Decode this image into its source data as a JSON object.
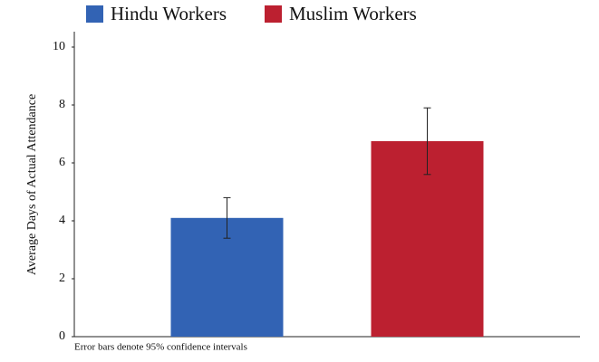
{
  "chart_data": {
    "type": "bar",
    "categories": [
      null
    ],
    "series": [
      {
        "name": "Hindu Workers",
        "color": "#3263b4",
        "values": [
          4.1
        ],
        "errors": [
          0.7
        ]
      },
      {
        "name": "Muslim Workers",
        "color": "#bc2030",
        "values": [
          6.75
        ],
        "errors": [
          1.15
        ]
      }
    ],
    "ylabel": "Average Days of Actual Attendance",
    "annotation": "Error bars denote 95% confidence intervals",
    "ylim": [
      0,
      10
    ],
    "yticks": [
      0,
      2,
      4,
      6,
      8,
      10
    ],
    "grid": false
  }
}
